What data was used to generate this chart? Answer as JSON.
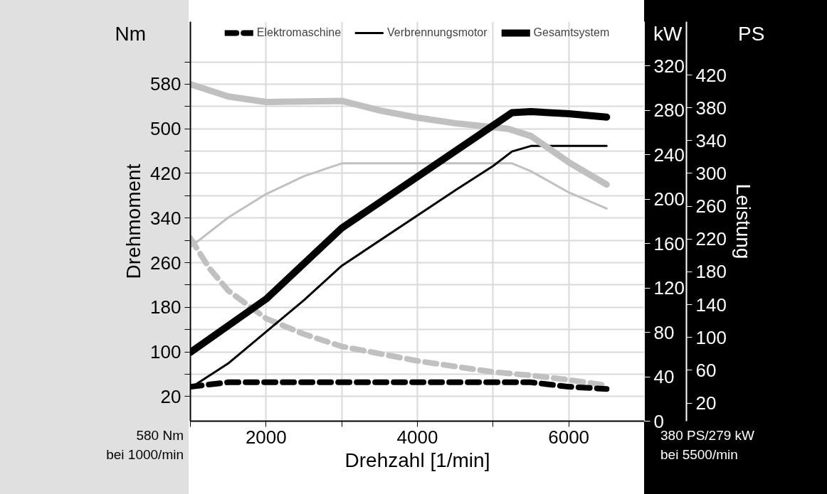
{
  "chart_data": {
    "type": "line",
    "xlabel": "Drehzahl [1/min]",
    "ylabel": "Drehmoment",
    "y3label": "Leistung",
    "xlim": [
      1000,
      7000
    ],
    "ylim": [
      -24,
      692
    ],
    "y2lim": [
      0,
      360
    ],
    "y3lim": [
      -2,
      485
    ],
    "xticks": [
      {
        "value": 1000,
        "label": null
      },
      2000,
      {
        "value": 3000,
        "label": null
      },
      4000,
      {
        "value": 5000,
        "label": null
      },
      6000,
      {
        "value": 7000,
        "label": null
      }
    ],
    "yticks": [
      20,
      {
        "value": 60,
        "label": null
      },
      100,
      {
        "value": 140,
        "label": null
      },
      180,
      {
        "value": 220,
        "label": null
      },
      260,
      {
        "value": 300,
        "label": null
      },
      340,
      {
        "value": 380,
        "label": null
      },
      420,
      {
        "value": 460,
        "label": null
      },
      500,
      {
        "value": 540,
        "label": null
      },
      580,
      {
        "value": 620,
        "label": null
      }
    ],
    "y2ticks": [
      0,
      40,
      80,
      120,
      160,
      200,
      240,
      280,
      320
    ],
    "y3ticks": [
      20,
      60,
      100,
      140,
      180,
      220,
      260,
      300,
      340,
      380,
      420
    ],
    "grid": true,
    "legend": "top",
    "series": [
      {
        "color": "#c0c0c0",
        "axis": "y",
        "line_style": "dashed",
        "x": [
          1000,
          1250,
          1500,
          2000,
          2500,
          3000,
          4000,
          5000,
          5500,
          6000,
          6500
        ],
        "values": [
          304,
          250,
          210,
          160,
          132,
          110,
          84,
          64,
          58,
          50,
          40
        ]
      },
      {
        "name": "Elektromaschine",
        "color": "#000000",
        "axis": "y2",
        "line_style": "dashed",
        "x": [
          1000,
          1500,
          5500,
          6000,
          6500
        ],
        "values": [
          31,
          35,
          35,
          31,
          29
        ]
      },
      {
        "color": "#c0c0c0",
        "axis": "y",
        "line_style": "solid",
        "x": [
          1000,
          1500,
          2000,
          2500,
          3000,
          5250,
          5500,
          6000,
          6500
        ],
        "values": [
          288,
          341,
          383,
          415,
          438,
          438,
          424,
          386,
          357
        ]
      },
      {
        "name": "Verbrennungsmotor",
        "color": "#000000",
        "axis": "y2",
        "line_style": "solid",
        "x": [
          1000,
          1500,
          2500,
          3000,
          4500,
          5000,
          5250,
          5500,
          6500
        ],
        "values": [
          30,
          52,
          109,
          140,
          208,
          230,
          243,
          248,
          248
        ]
      },
      {
        "color": "#c0c0c0",
        "axis": "y",
        "line_style": "solid",
        "x": [
          1000,
          1500,
          2000,
          3000,
          3500,
          4000,
          4500,
          5200,
          5500,
          6000,
          6500
        ],
        "values": [
          580,
          558,
          548,
          550,
          533,
          520,
          510,
          500,
          487,
          440,
          400
        ]
      },
      {
        "name": "Gesamtsystem",
        "color": "#000000",
        "axis": "y2",
        "line_style": "solid",
        "x": [
          1000,
          2000,
          2500,
          3000,
          5250,
          5500,
          6000,
          6500
        ],
        "values": [
          62,
          110,
          142,
          174,
          278,
          279,
          277,
          274
        ]
      }
    ],
    "annotations": [
      "Nm",
      "kW",
      "PS",
      "580 Nm\nbei 1000/min",
      "380 PS/279 kW\nbei 5500/min"
    ]
  }
}
